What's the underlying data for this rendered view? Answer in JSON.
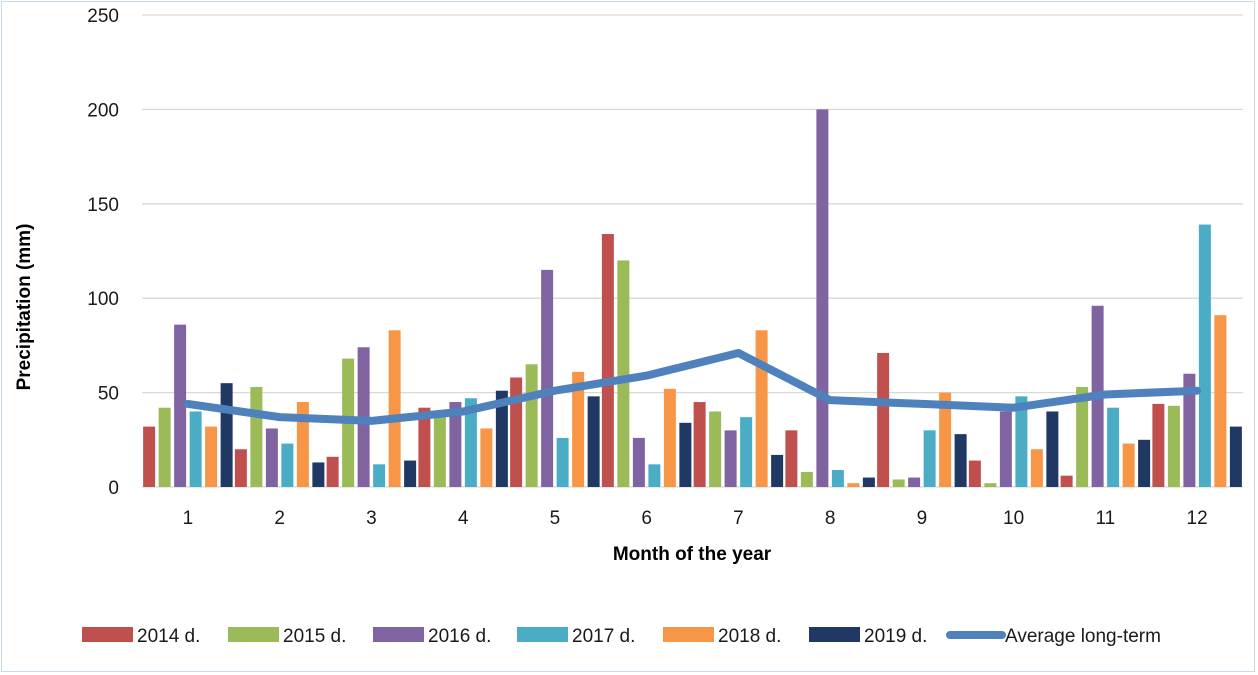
{
  "chart_data": {
    "type": "bar",
    "title": "",
    "xlabel": "Month of the year",
    "ylabel": "Precipitation (mm)",
    "ylim": [
      0,
      250
    ],
    "yticks": [
      "0",
      "50",
      "100",
      "150",
      "200",
      "250"
    ],
    "categories": [
      "1",
      "2",
      "3",
      "4",
      "5",
      "6",
      "7",
      "8",
      "9",
      "10",
      "11",
      "12"
    ],
    "grid": true,
    "legend_position": "bottom",
    "series": [
      {
        "name": "2014 d.",
        "color": "#c0504d",
        "values": [
          32,
          20,
          16,
          42,
          58,
          134,
          45,
          30,
          71,
          14,
          6,
          44
        ]
      },
      {
        "name": "2015 d.",
        "color": "#9bbb59",
        "values": [
          42,
          53,
          68,
          40,
          65,
          120,
          40,
          8,
          4,
          2,
          53,
          43
        ]
      },
      {
        "name": "2016 d.",
        "color": "#8064a2",
        "values": [
          86,
          31,
          74,
          45,
          115,
          26,
          30,
          200,
          5,
          40,
          96,
          60
        ]
      },
      {
        "name": "2017 d.",
        "color": "#4bacc6",
        "values": [
          40,
          23,
          12,
          47,
          26,
          12,
          37,
          9,
          30,
          48,
          42,
          139
        ]
      },
      {
        "name": "2018 d.",
        "color": "#f79646",
        "values": [
          32,
          45,
          83,
          31,
          61,
          52,
          83,
          2,
          50,
          20,
          23,
          91
        ]
      },
      {
        "name": "2019 d.",
        "color": "#1f3864",
        "values": [
          55,
          13,
          14,
          51,
          48,
          34,
          17,
          5,
          28,
          40,
          25,
          32
        ]
      }
    ],
    "line_series": {
      "name": "Average long-term",
      "color": "#4f81bd",
      "values": [
        44,
        37,
        35,
        40,
        51,
        59,
        71,
        46,
        44,
        42,
        49,
        51
      ]
    }
  }
}
